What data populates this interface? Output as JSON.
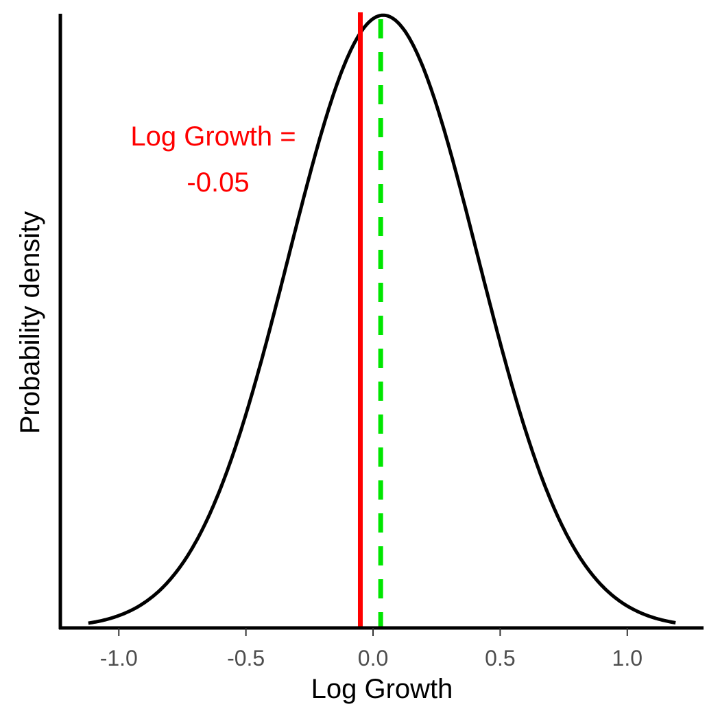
{
  "chart_data": {
    "type": "line",
    "title": "",
    "xlabel": "Log Growth",
    "ylabel": "Probability density",
    "xlim": [
      -1.23,
      1.3
    ],
    "ylim": [
      0,
      1.075
    ],
    "x_ticks": [
      -1.0,
      -0.5,
      0.0,
      0.5,
      1.0
    ],
    "x_tick_labels": [
      "-1.0",
      "-0.5",
      "0.0",
      "0.5",
      "1.0"
    ],
    "grid": false,
    "series": [
      {
        "name": "density",
        "distribution": "normal",
        "mean": 0.04,
        "sd": 0.372,
        "x_range": [
          -1.12,
          1.19
        ],
        "color": "#000000"
      }
    ],
    "vlines": [
      {
        "name": "observed",
        "x": -0.05,
        "color": "#ff0000",
        "style": "solid"
      },
      {
        "name": "mean",
        "x": 0.03,
        "color": "#00e600",
        "style": "dashed"
      }
    ],
    "annotation": {
      "lines": [
        "Log Growth =",
        "-0.05"
      ],
      "x": -0.63,
      "color": "#ff0000"
    }
  }
}
